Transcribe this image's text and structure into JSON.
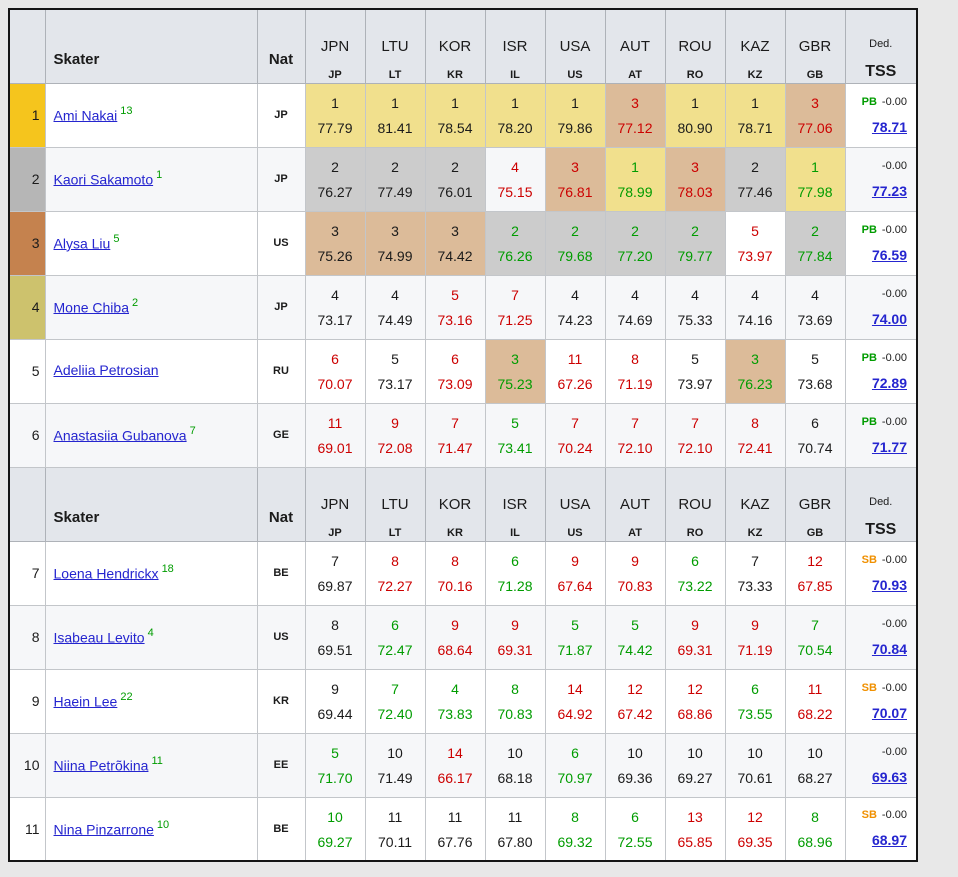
{
  "colors": {
    "page_bg": "#e8e8e8",
    "table_bg": "#ffffff",
    "header_bg": "#e3e6eb",
    "row_alt_bg": "#f6f7f9",
    "text": "#1b1b1b",
    "better_green": "#009c00",
    "worse_red": "#cc0000",
    "link_blue": "#2525cf",
    "sb_orange": "#f09000",
    "cell": {
      "gold": "#f1e08d",
      "silver": "#cccccc",
      "bronze": "#dcbb99"
    },
    "rank": {
      "gold": "#f5c51d",
      "silver": "#b6b6b6",
      "bronze": "#c5824e",
      "fourth": "#cdc26d"
    }
  },
  "table": {
    "header": {
      "skater_label": "Skater",
      "nat_label": "Nat",
      "events": [
        {
          "code": "JPN",
          "abbr": "JP"
        },
        {
          "code": "LTU",
          "abbr": "LT"
        },
        {
          "code": "KOR",
          "abbr": "KR"
        },
        {
          "code": "ISR",
          "abbr": "IL"
        },
        {
          "code": "USA",
          "abbr": "US"
        },
        {
          "code": "AUT",
          "abbr": "AT"
        },
        {
          "code": "ROU",
          "abbr": "RO"
        },
        {
          "code": "KAZ",
          "abbr": "KZ"
        },
        {
          "code": "GBR",
          "abbr": "GB"
        }
      ],
      "ded_label": "Ded.",
      "tss_label": "TSS"
    },
    "rows": [
      {
        "rank": "1",
        "medal": "gold",
        "name": "Ami Nakai",
        "sup": "13",
        "nat": "JP",
        "events": [
          [
            "1",
            "77.79",
            "gold",
            "black"
          ],
          [
            "1",
            "81.41",
            "gold",
            "black"
          ],
          [
            "1",
            "78.54",
            "gold",
            "black"
          ],
          [
            "1",
            "78.20",
            "gold",
            "black"
          ],
          [
            "1",
            "79.86",
            "gold",
            "black"
          ],
          [
            "3",
            "77.12",
            "bronze",
            "red"
          ],
          [
            "1",
            "80.90",
            "gold",
            "black"
          ],
          [
            "1",
            "78.71",
            "gold",
            "black"
          ],
          [
            "3",
            "77.06",
            "bronze",
            "red"
          ]
        ],
        "tag": "PB",
        "ded": "-0.00",
        "tss": "78.71"
      },
      {
        "rank": "2",
        "medal": "silver",
        "name": "Kaori Sakamoto",
        "sup": "1",
        "nat": "JP",
        "events": [
          [
            "2",
            "76.27",
            "silver",
            "black"
          ],
          [
            "2",
            "77.49",
            "silver",
            "black"
          ],
          [
            "2",
            "76.01",
            "silver",
            "black"
          ],
          [
            "4",
            "75.15",
            "",
            "red"
          ],
          [
            "3",
            "76.81",
            "bronze",
            "red"
          ],
          [
            "1",
            "78.99",
            "gold",
            "green"
          ],
          [
            "3",
            "78.03",
            "bronze",
            "red"
          ],
          [
            "2",
            "77.46",
            "silver",
            "black"
          ],
          [
            "1",
            "77.98",
            "gold",
            "green"
          ]
        ],
        "tag": "",
        "ded": "-0.00",
        "tss": "77.23"
      },
      {
        "rank": "3",
        "medal": "bronze",
        "name": "Alysa Liu",
        "sup": "5",
        "nat": "US",
        "events": [
          [
            "3",
            "75.26",
            "bronze",
            "black"
          ],
          [
            "3",
            "74.99",
            "bronze",
            "black"
          ],
          [
            "3",
            "74.42",
            "bronze",
            "black"
          ],
          [
            "2",
            "76.26",
            "silver",
            "green"
          ],
          [
            "2",
            "79.68",
            "silver",
            "green"
          ],
          [
            "2",
            "77.20",
            "silver",
            "green"
          ],
          [
            "2",
            "79.77",
            "silver",
            "green"
          ],
          [
            "5",
            "73.97",
            "",
            "red"
          ],
          [
            "2",
            "77.84",
            "silver",
            "green"
          ]
        ],
        "tag": "PB",
        "ded": "-0.00",
        "tss": "76.59"
      },
      {
        "rank": "4",
        "medal": "fourth",
        "name": "Mone Chiba",
        "sup": "2",
        "nat": "JP",
        "events": [
          [
            "4",
            "73.17",
            "",
            "black"
          ],
          [
            "4",
            "74.49",
            "",
            "black"
          ],
          [
            "5",
            "73.16",
            "",
            "red"
          ],
          [
            "7",
            "71.25",
            "",
            "red"
          ],
          [
            "4",
            "74.23",
            "",
            "black"
          ],
          [
            "4",
            "74.69",
            "",
            "black"
          ],
          [
            "4",
            "75.33",
            "",
            "black"
          ],
          [
            "4",
            "74.16",
            "",
            "black"
          ],
          [
            "4",
            "73.69",
            "",
            "black"
          ]
        ],
        "tag": "",
        "ded": "-0.00",
        "tss": "74.00"
      },
      {
        "rank": "5",
        "medal": "",
        "name": "Adeliia Petrosian",
        "sup": "",
        "nat": "RU",
        "events": [
          [
            "6",
            "70.07",
            "",
            "red"
          ],
          [
            "5",
            "73.17",
            "",
            "black"
          ],
          [
            "6",
            "73.09",
            "",
            "red"
          ],
          [
            "3",
            "75.23",
            "bronze",
            "green"
          ],
          [
            "11",
            "67.26",
            "",
            "red"
          ],
          [
            "8",
            "71.19",
            "",
            "red"
          ],
          [
            "5",
            "73.97",
            "",
            "black"
          ],
          [
            "3",
            "76.23",
            "bronze",
            "green"
          ],
          [
            "5",
            "73.68",
            "",
            "black"
          ]
        ],
        "tag": "PB",
        "ded": "-0.00",
        "tss": "72.89"
      },
      {
        "rank": "6",
        "medal": "",
        "name": "Anastasiia Gubanova",
        "sup": "7",
        "nat": "GE",
        "events": [
          [
            "11",
            "69.01",
            "",
            "red"
          ],
          [
            "9",
            "72.08",
            "",
            "red"
          ],
          [
            "7",
            "71.47",
            "",
            "red"
          ],
          [
            "5",
            "73.41",
            "",
            "green"
          ],
          [
            "7",
            "70.24",
            "",
            "red"
          ],
          [
            "7",
            "72.10",
            "",
            "red"
          ],
          [
            "7",
            "72.10",
            "",
            "red"
          ],
          [
            "8",
            "72.41",
            "",
            "red"
          ],
          [
            "6",
            "70.74",
            "",
            "black"
          ]
        ],
        "tag": "PB",
        "ded": "-0.00",
        "tss": "71.77"
      },
      {
        "rank": "7",
        "medal": "",
        "name": "Loena Hendrickx",
        "sup": "18",
        "nat": "BE",
        "events": [
          [
            "7",
            "69.87",
            "",
            "black"
          ],
          [
            "8",
            "72.27",
            "",
            "red"
          ],
          [
            "8",
            "70.16",
            "",
            "red"
          ],
          [
            "6",
            "71.28",
            "",
            "green"
          ],
          [
            "9",
            "67.64",
            "",
            "red"
          ],
          [
            "9",
            "70.83",
            "",
            "red"
          ],
          [
            "6",
            "73.22",
            "",
            "green"
          ],
          [
            "7",
            "73.33",
            "",
            "black"
          ],
          [
            "12",
            "67.85",
            "",
            "red"
          ]
        ],
        "tag": "SB",
        "ded": "-0.00",
        "tss": "70.93"
      },
      {
        "rank": "8",
        "medal": "",
        "name": "Isabeau Levito",
        "sup": "4",
        "nat": "US",
        "events": [
          [
            "8",
            "69.51",
            "",
            "black"
          ],
          [
            "6",
            "72.47",
            "",
            "green"
          ],
          [
            "9",
            "68.64",
            "",
            "red"
          ],
          [
            "9",
            "69.31",
            "",
            "red"
          ],
          [
            "5",
            "71.87",
            "",
            "green"
          ],
          [
            "5",
            "74.42",
            "",
            "green"
          ],
          [
            "9",
            "69.31",
            "",
            "red"
          ],
          [
            "9",
            "71.19",
            "",
            "red"
          ],
          [
            "7",
            "70.54",
            "",
            "green"
          ]
        ],
        "tag": "",
        "ded": "-0.00",
        "tss": "70.84"
      },
      {
        "rank": "9",
        "medal": "",
        "name": "Haein Lee",
        "sup": "22",
        "nat": "KR",
        "events": [
          [
            "9",
            "69.44",
            "",
            "black"
          ],
          [
            "7",
            "72.40",
            "",
            "green"
          ],
          [
            "4",
            "73.83",
            "",
            "green"
          ],
          [
            "8",
            "70.83",
            "",
            "green"
          ],
          [
            "14",
            "64.92",
            "",
            "red"
          ],
          [
            "12",
            "67.42",
            "",
            "red"
          ],
          [
            "12",
            "68.86",
            "",
            "red"
          ],
          [
            "6",
            "73.55",
            "",
            "green"
          ],
          [
            "11",
            "68.22",
            "",
            "red"
          ]
        ],
        "tag": "SB",
        "ded": "-0.00",
        "tss": "70.07"
      },
      {
        "rank": "10",
        "medal": "",
        "name": "Niina Petrõkina",
        "sup": "11",
        "nat": "EE",
        "events": [
          [
            "5",
            "71.70",
            "",
            "green"
          ],
          [
            "10",
            "71.49",
            "",
            "black"
          ],
          [
            "14",
            "66.17",
            "",
            "red"
          ],
          [
            "10",
            "68.18",
            "",
            "black"
          ],
          [
            "6",
            "70.97",
            "",
            "green"
          ],
          [
            "10",
            "69.36",
            "",
            "black"
          ],
          [
            "10",
            "69.27",
            "",
            "black"
          ],
          [
            "10",
            "70.61",
            "",
            "black"
          ],
          [
            "10",
            "68.27",
            "",
            "black"
          ]
        ],
        "tag": "",
        "ded": "-0.00",
        "tss": "69.63"
      },
      {
        "rank": "11",
        "medal": "",
        "name": "Nina Pinzarrone",
        "sup": "10",
        "nat": "BE",
        "events": [
          [
            "10",
            "69.27",
            "",
            "green"
          ],
          [
            "11",
            "70.11",
            "",
            "black"
          ],
          [
            "11",
            "67.76",
            "",
            "black"
          ],
          [
            "11",
            "67.80",
            "",
            "black"
          ],
          [
            "8",
            "69.32",
            "",
            "green"
          ],
          [
            "6",
            "72.55",
            "",
            "green"
          ],
          [
            "13",
            "65.85",
            "",
            "red"
          ],
          [
            "12",
            "69.35",
            "",
            "red"
          ],
          [
            "8",
            "68.96",
            "",
            "green"
          ]
        ],
        "tag": "SB",
        "ded": "-0.00",
        "tss": "68.97"
      }
    ]
  }
}
